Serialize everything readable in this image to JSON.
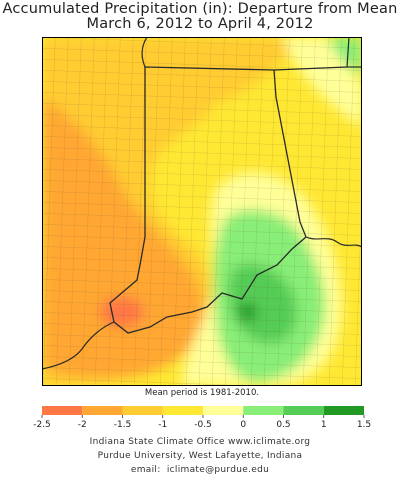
{
  "title": "Accumulated Precipitation (in): Departure from Mean",
  "subtitle": "March 6, 2012 to April 4, 2012",
  "note": "Mean period is 1981-2010.",
  "legend": {
    "ticks": [
      "-2.5",
      "-2",
      "-1.5",
      "-1",
      "-0.5",
      "0",
      "0.5",
      "1",
      "1.5"
    ],
    "colors": [
      "#ff7744",
      "#ffa733",
      "#ffcc33",
      "#ffe833",
      "#ffff99",
      "#88ee77",
      "#55cc55",
      "#229922"
    ]
  },
  "footer": {
    "line1": "Indiana State Climate Office   www.iclimate.org",
    "line2": "Purdue University, West Lafayette, Indiana",
    "email_label": "email:",
    "email": "iclimate@purdue.edu"
  }
}
